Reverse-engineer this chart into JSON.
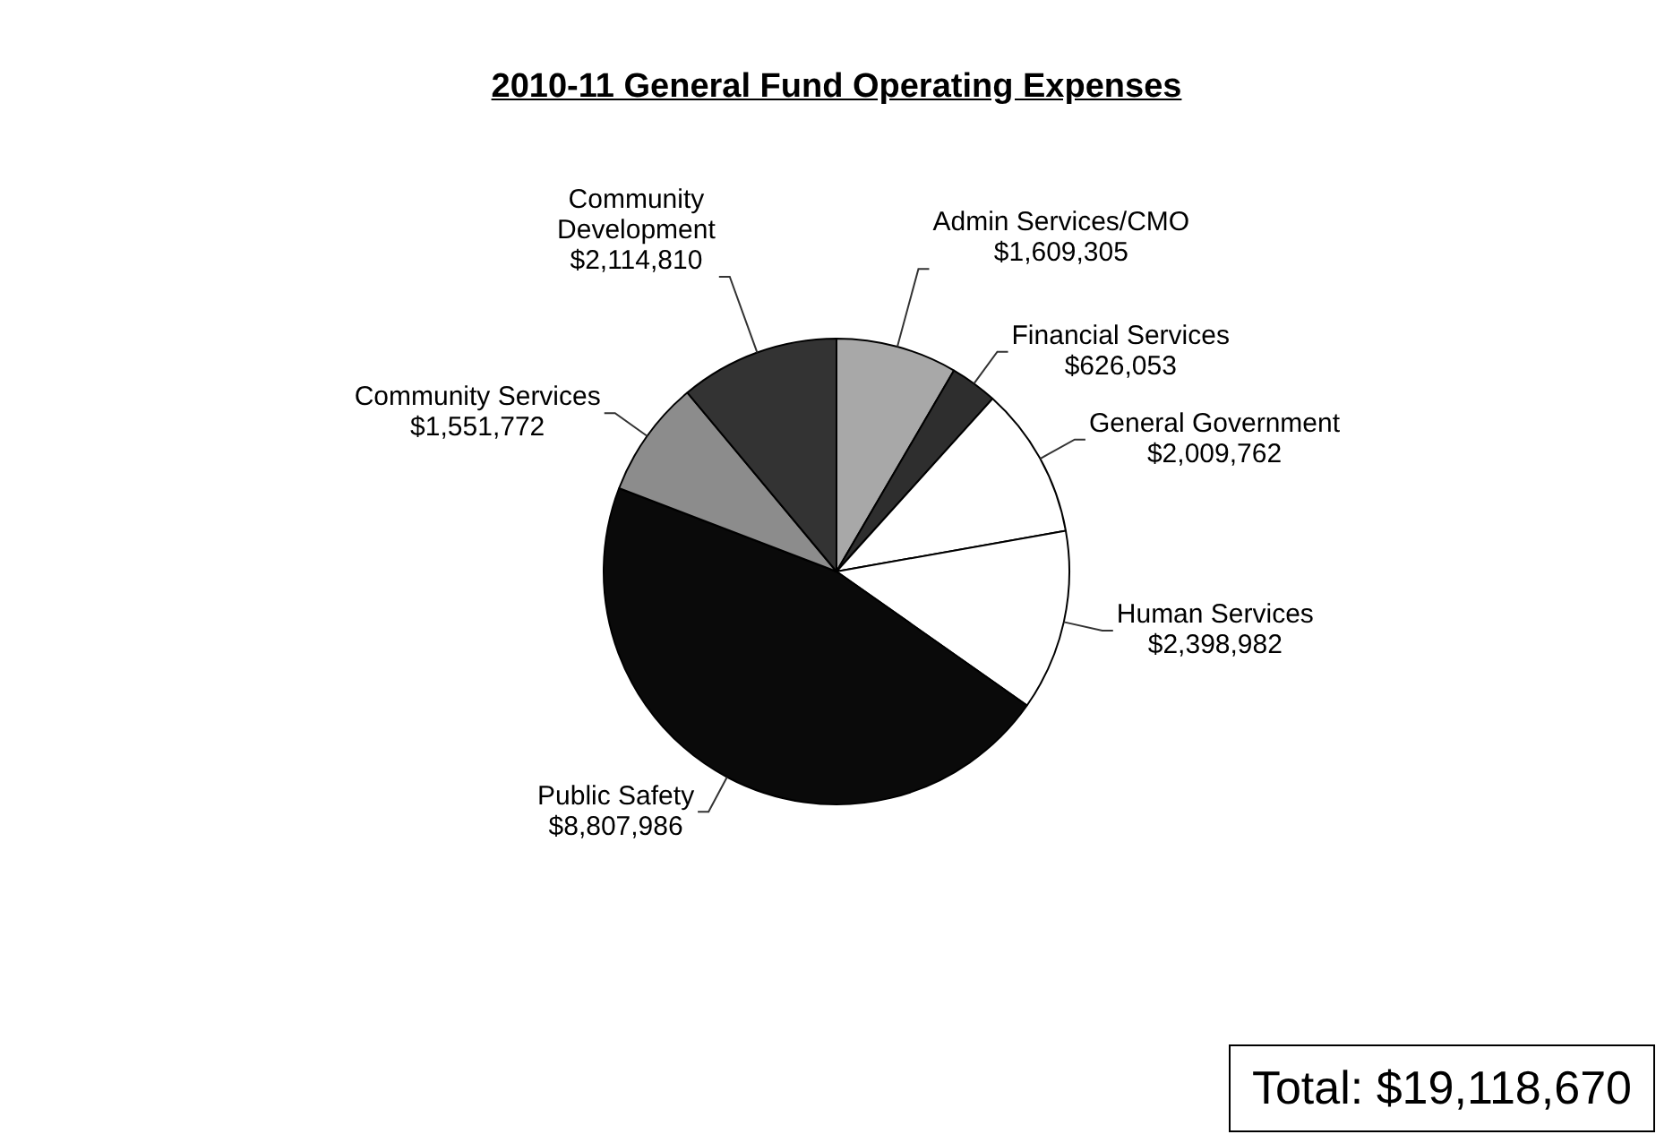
{
  "chart_data": {
    "type": "pie",
    "title": "2010-11 General Fund Operating Expenses",
    "categories": [
      "Admin Services/CMO",
      "Financial Services",
      "General Government",
      "Human Services",
      "Public Safety",
      "Community Services",
      "Community Development"
    ],
    "values": [
      1609305,
      626053,
      2009762,
      2398982,
      8807986,
      1551772,
      2114810
    ],
    "value_labels": [
      "$1,609,305",
      "$626,053",
      "$2,009,762",
      "$2,398,982",
      "$8,807,986",
      "$1,551,772",
      "$2,114,810"
    ],
    "colors": [
      "#a8a8a8",
      "#2e2e2e",
      "#ffffff",
      "#ffffff",
      "#0a0a0a",
      "#8c8c8c",
      "#333333"
    ],
    "legend": false,
    "annotations": [
      "Total: $19,118,670"
    ]
  }
}
